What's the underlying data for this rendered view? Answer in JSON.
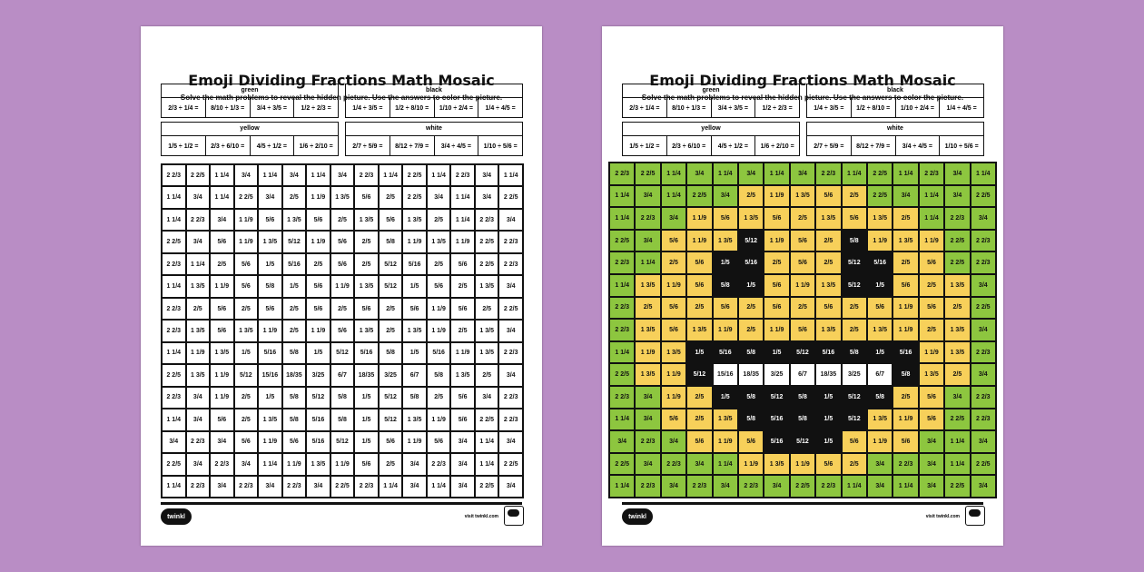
{
  "worksheet": {
    "title": "Emoji Dividing Fractions Math Mosaic",
    "subtitle": "Solve the math problems to reveal the hidden picture. Use the answers to color the picture.",
    "key": [
      {
        "label": "green",
        "problems": [
          "2/3 ÷ 1/4 =",
          "8/10 ÷ 1/3 =",
          "3/4 ÷ 3/5 =",
          "1/2 ÷ 2/3 ="
        ]
      },
      {
        "label": "black",
        "problems": [
          "1/4 ÷ 3/5 =",
          "1/2 ÷ 8/10 =",
          "1/10 ÷ 2/4 =",
          "1/4 ÷ 4/5 ="
        ]
      },
      {
        "label": "yellow",
        "problems": [
          "1/5 ÷ 1/2 =",
          "2/3 ÷ 6/10 =",
          "4/5 ÷ 1/2 =",
          "1/6 ÷ 2/10 ="
        ]
      },
      {
        "label": "white",
        "problems": [
          "2/7 ÷ 5/9 =",
          "8/12 ÷ 7/9 =",
          "3/4 ÷ 4/5 =",
          "1/10 ÷ 5/6 ="
        ]
      }
    ],
    "grid": [
      [
        "2 2/3",
        "2 2/5",
        "1 1/4",
        "3/4",
        "1 1/4",
        "3/4",
        "1 1/4",
        "3/4",
        "2 2/3",
        "1 1/4",
        "2 2/5",
        "1 1/4",
        "2 2/3",
        "3/4",
        "1 1/4"
      ],
      [
        "1 1/4",
        "3/4",
        "1 1/4",
        "2 2/5",
        "3/4",
        "2/5",
        "1 1/9",
        "1 3/5",
        "5/6",
        "2/5",
        "2 2/5",
        "3/4",
        "1 1/4",
        "3/4",
        "2 2/5"
      ],
      [
        "1 1/4",
        "2 2/3",
        "3/4",
        "1 1/9",
        "5/6",
        "1 3/5",
        "5/6",
        "2/5",
        "1 3/5",
        "5/6",
        "1 3/5",
        "2/5",
        "1 1/4",
        "2 2/3",
        "3/4"
      ],
      [
        "2 2/5",
        "3/4",
        "5/6",
        "1 1/9",
        "1 3/5",
        "5/12",
        "1 1/9",
        "5/6",
        "2/5",
        "5/8",
        "1 1/9",
        "1 3/5",
        "1 1/9",
        "2 2/5",
        "2 2/3"
      ],
      [
        "2 2/3",
        "1 1/4",
        "2/5",
        "5/6",
        "1/5",
        "5/16",
        "2/5",
        "5/6",
        "2/5",
        "5/12",
        "5/16",
        "2/5",
        "5/6",
        "2 2/5",
        "2 2/3"
      ],
      [
        "1 1/4",
        "1 3/5",
        "1 1/9",
        "5/6",
        "5/8",
        "1/5",
        "5/6",
        "1 1/9",
        "1 3/5",
        "5/12",
        "1/5",
        "5/6",
        "2/5",
        "1 3/5",
        "3/4"
      ],
      [
        "2 2/3",
        "2/5",
        "5/6",
        "2/5",
        "5/6",
        "2/5",
        "5/6",
        "2/5",
        "5/6",
        "2/5",
        "5/6",
        "1 1/9",
        "5/6",
        "2/5",
        "2 2/5"
      ],
      [
        "2 2/3",
        "1 3/5",
        "5/6",
        "1 3/5",
        "1 1/9",
        "2/5",
        "1 1/9",
        "5/6",
        "1 3/5",
        "2/5",
        "1 3/5",
        "1 1/9",
        "2/5",
        "1 3/5",
        "3/4"
      ],
      [
        "1 1/4",
        "1 1/9",
        "1 3/5",
        "1/5",
        "5/16",
        "5/8",
        "1/5",
        "5/12",
        "5/16",
        "5/8",
        "1/5",
        "5/16",
        "1 1/9",
        "1 3/5",
        "2 2/3"
      ],
      [
        "2 2/5",
        "1 3/5",
        "1 1/9",
        "5/12",
        "15/16",
        "18/35",
        "3/25",
        "6/7",
        "18/35",
        "3/25",
        "6/7",
        "5/8",
        "1 3/5",
        "2/5",
        "3/4"
      ],
      [
        "2 2/3",
        "3/4",
        "1 1/9",
        "2/5",
        "1/5",
        "5/8",
        "5/12",
        "5/8",
        "1/5",
        "5/12",
        "5/8",
        "2/5",
        "5/6",
        "3/4",
        "2 2/3"
      ],
      [
        "1 1/4",
        "3/4",
        "5/6",
        "2/5",
        "1 3/5",
        "5/8",
        "5/16",
        "5/8",
        "1/5",
        "5/12",
        "1 3/5",
        "1 1/9",
        "5/6",
        "2 2/5",
        "2 2/3"
      ],
      [
        "3/4",
        "2 2/3",
        "3/4",
        "5/6",
        "1 1/9",
        "5/6",
        "5/16",
        "5/12",
        "1/5",
        "5/6",
        "1 1/9",
        "5/6",
        "3/4",
        "1 1/4",
        "3/4"
      ],
      [
        "2 2/5",
        "3/4",
        "2 2/3",
        "3/4",
        "1 1/4",
        "1 1/9",
        "1 3/5",
        "1 1/9",
        "5/6",
        "2/5",
        "3/4",
        "2 2/3",
        "3/4",
        "1 1/4",
        "2 2/5"
      ],
      [
        "1 1/4",
        "2 2/3",
        "3/4",
        "2 2/3",
        "3/4",
        "2 2/3",
        "3/4",
        "2 2/5",
        "2 2/3",
        "1 1/4",
        "3/4",
        "1 1/4",
        "3/4",
        "2 2/5",
        "3/4"
      ]
    ],
    "footer": {
      "logo": "twinkl",
      "visit": "visit twinkl.com"
    }
  },
  "colors": {
    "background": "#b98dc5",
    "green": "#8dc63f",
    "yellow": "#f7d05a",
    "black": "#111111",
    "white": "#ffffff"
  }
}
